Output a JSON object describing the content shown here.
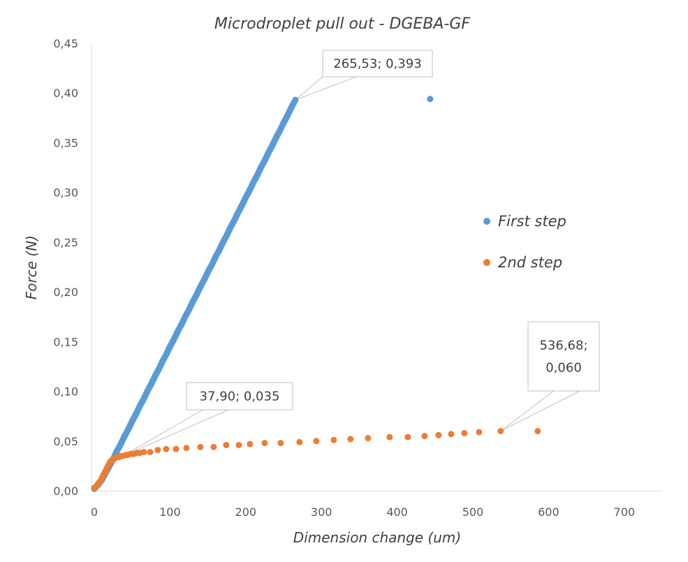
{
  "chart_data": {
    "type": "scatter",
    "title": "Microdroplet pull out - DGEBA-GF",
    "xlabel": "Dimension change (um)",
    "ylabel": "Force (N)",
    "xlim": [
      0,
      750
    ],
    "ylim": [
      0,
      0.45
    ],
    "grid": false,
    "legend_position": "right",
    "x_ticks": [
      0,
      100,
      200,
      300,
      400,
      500,
      600,
      700
    ],
    "x_tick_labels": [
      "0",
      "100",
      "200",
      "300",
      "400",
      "500",
      "600",
      "700"
    ],
    "y_ticks": [
      0,
      0.05,
      0.1,
      0.15,
      0.2,
      0.25,
      0.3,
      0.35,
      0.4,
      0.45
    ],
    "y_tick_labels": [
      "0,00",
      "0,05",
      "0,10",
      "0,15",
      "0,20",
      "0,25",
      "0,30",
      "0,35",
      "0,40",
      "0,45"
    ],
    "series": [
      {
        "name": "First step",
        "color": "#5B9BD5",
        "points": [
          [
            0,
            0.002
          ],
          [
            5,
            0.006
          ],
          [
            10,
            0.011
          ],
          [
            15,
            0.018
          ],
          [
            20,
            0.025
          ],
          [
            25,
            0.032
          ],
          [
            30,
            0.04
          ],
          [
            35,
            0.047
          ],
          [
            40,
            0.055
          ],
          [
            45,
            0.062
          ],
          [
            50,
            0.07
          ],
          [
            55,
            0.077
          ],
          [
            60,
            0.085
          ],
          [
            65,
            0.092
          ],
          [
            70,
            0.1
          ],
          [
            75,
            0.107
          ],
          [
            80,
            0.115
          ],
          [
            85,
            0.122
          ],
          [
            90,
            0.13
          ],
          [
            95,
            0.137
          ],
          [
            100,
            0.145
          ],
          [
            105,
            0.152
          ],
          [
            110,
            0.16
          ],
          [
            115,
            0.167
          ],
          [
            120,
            0.175
          ],
          [
            125,
            0.182
          ],
          [
            130,
            0.19
          ],
          [
            135,
            0.197
          ],
          [
            140,
            0.205
          ],
          [
            145,
            0.212
          ],
          [
            150,
            0.22
          ],
          [
            155,
            0.227
          ],
          [
            160,
            0.235
          ],
          [
            165,
            0.242
          ],
          [
            170,
            0.25
          ],
          [
            175,
            0.257
          ],
          [
            180,
            0.265
          ],
          [
            185,
            0.272
          ],
          [
            190,
            0.28
          ],
          [
            195,
            0.287
          ],
          [
            200,
            0.295
          ],
          [
            205,
            0.302
          ],
          [
            210,
            0.31
          ],
          [
            215,
            0.317
          ],
          [
            220,
            0.325
          ],
          [
            225,
            0.332
          ],
          [
            230,
            0.34
          ],
          [
            235,
            0.347
          ],
          [
            240,
            0.355
          ],
          [
            245,
            0.362
          ],
          [
            250,
            0.37
          ],
          [
            255,
            0.377
          ],
          [
            260,
            0.385
          ],
          [
            265.53,
            0.393
          ]
        ],
        "isolated_points": [
          [
            443.6,
            0.394
          ]
        ]
      },
      {
        "name": "2nd step",
        "color": "#ED7D31",
        "points": [
          [
            0,
            0.003
          ],
          [
            2,
            0.004
          ],
          [
            4,
            0.006
          ],
          [
            6,
            0.008
          ],
          [
            8,
            0.01
          ],
          [
            10,
            0.013
          ],
          [
            12,
            0.016
          ],
          [
            14,
            0.019
          ],
          [
            16,
            0.022
          ],
          [
            18,
            0.025
          ],
          [
            20,
            0.028
          ],
          [
            22,
            0.03
          ],
          [
            24,
            0.031
          ],
          [
            26,
            0.032
          ],
          [
            28,
            0.033
          ],
          [
            30,
            0.034
          ],
          [
            33,
            0.034
          ],
          [
            35.5,
            0.035
          ],
          [
            37.9,
            0.035
          ],
          [
            41,
            0.036
          ],
          [
            44,
            0.036
          ],
          [
            48,
            0.037
          ],
          [
            52,
            0.037
          ],
          [
            56,
            0.038
          ],
          [
            60,
            0.038
          ],
          [
            65.5,
            0.039
          ],
          [
            73.8,
            0.039
          ],
          [
            83.9,
            0.041
          ],
          [
            95,
            0.042
          ],
          [
            107.9,
            0.042
          ],
          [
            121.7,
            0.043
          ],
          [
            140.2,
            0.044
          ],
          [
            157.7,
            0.044
          ],
          [
            174.3,
            0.046
          ],
          [
            190.9,
            0.046
          ],
          [
            205.6,
            0.047
          ],
          [
            225,
            0.048
          ],
          [
            246.2,
            0.048
          ],
          [
            271.1,
            0.049
          ],
          [
            293.2,
            0.05
          ],
          [
            316.3,
            0.051
          ],
          [
            338.4,
            0.052
          ],
          [
            361.5,
            0.053
          ],
          [
            390.1,
            0.054
          ],
          [
            414.1,
            0.054
          ],
          [
            436.2,
            0.055
          ],
          [
            454.7,
            0.056
          ],
          [
            471.3,
            0.057
          ],
          [
            488.8,
            0.058
          ],
          [
            508.2,
            0.059
          ],
          [
            536.68,
            0.06
          ],
          [
            585.6,
            0.06
          ]
        ]
      }
    ],
    "annotations": [
      {
        "lines": [
          "265,53; 0,393"
        ],
        "x": 265.53,
        "y": 0.393
      },
      {
        "lines": [
          "37,90; 0,035"
        ],
        "x": 37.9,
        "y": 0.035
      },
      {
        "lines": [
          "536,68;",
          "0,060"
        ],
        "x": 536.68,
        "y": 0.06
      }
    ]
  }
}
